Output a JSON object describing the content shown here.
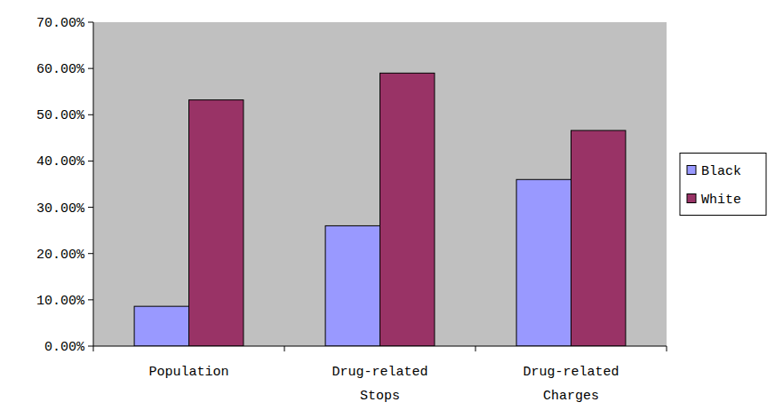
{
  "chart_data": {
    "type": "bar",
    "categories": [
      "Population",
      "Drug-related Stops",
      "Drug-related Charges"
    ],
    "series": [
      {
        "name": "Black",
        "color": "#9999ff",
        "values": [
          8.6,
          26.0,
          36.0
        ]
      },
      {
        "name": "White",
        "color": "#993366",
        "values": [
          53.2,
          59.0,
          46.6
        ]
      }
    ],
    "ylim": [
      0,
      70
    ],
    "yticks": [
      {
        "value": 0,
        "label": "0.00%"
      },
      {
        "value": 10,
        "label": "10.00%"
      },
      {
        "value": 20,
        "label": "20.00%"
      },
      {
        "value": 30,
        "label": "30.00%"
      },
      {
        "value": 40,
        "label": "40.00%"
      },
      {
        "value": 50,
        "label": "50.00%"
      },
      {
        "value": 60,
        "label": "60.00%"
      },
      {
        "value": 70,
        "label": "70.00%"
      }
    ],
    "grid": false,
    "legend": "right"
  }
}
